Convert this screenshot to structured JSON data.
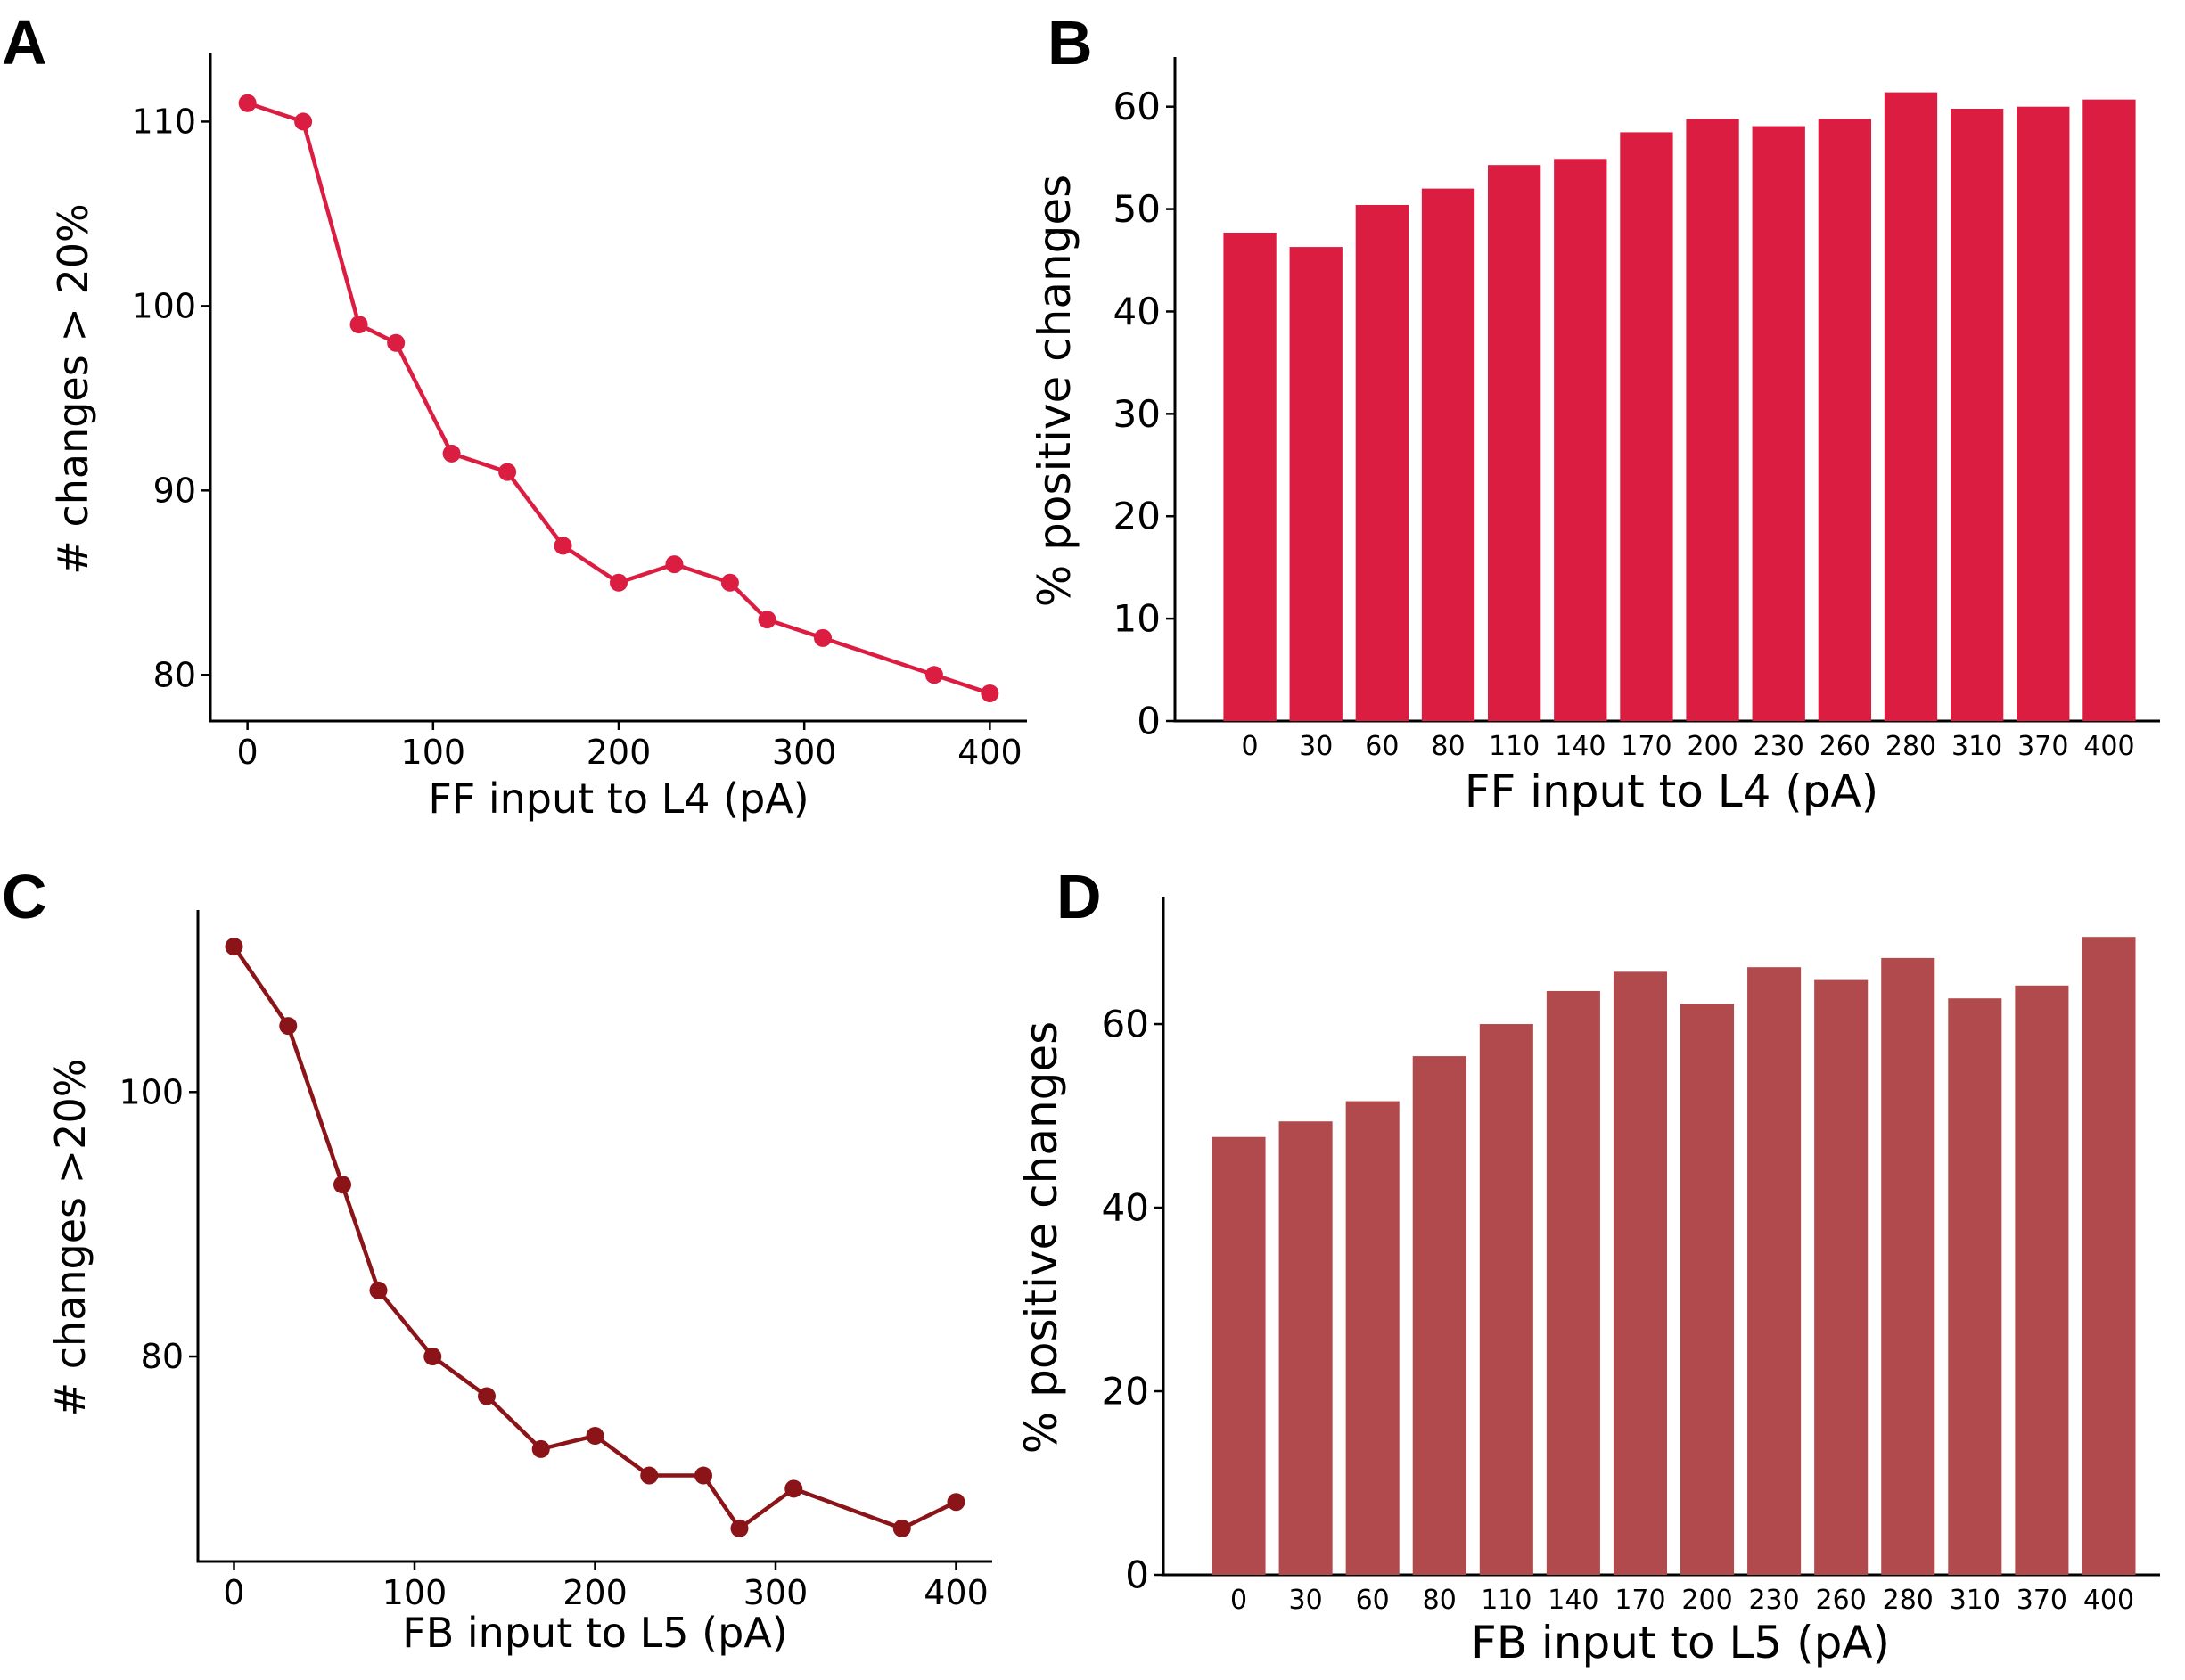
{
  "chart_data": [
    {
      "panel": "A",
      "type": "line",
      "color": "#dc1d42",
      "x": [
        0,
        30,
        60,
        80,
        110,
        140,
        170,
        200,
        230,
        260,
        280,
        310,
        370,
        400
      ],
      "y": [
        111,
        110,
        99,
        98,
        92,
        91,
        87,
        85,
        86,
        85,
        83,
        82,
        80,
        79
      ],
      "xlabel": "FF input to L4 (pA)",
      "ylabel": "# changes > 20%",
      "xticks": [
        0,
        100,
        200,
        300,
        400
      ],
      "yticks": [
        80,
        90,
        100,
        110
      ],
      "xlim": [
        -20,
        420
      ],
      "ylim": [
        77.5,
        113.5
      ],
      "grid": false
    },
    {
      "panel": "B",
      "type": "bar",
      "color": "#dc1d42",
      "categories": [
        "0",
        "30",
        "60",
        "80",
        "110",
        "140",
        "170",
        "200",
        "230",
        "260",
        "280",
        "310",
        "370",
        "400"
      ],
      "values": [
        47.7,
        46.3,
        50.4,
        52,
        54.3,
        54.9,
        57.5,
        58.8,
        58.1,
        58.8,
        61.4,
        59.8,
        60,
        60.7
      ],
      "xlabel": "FF input to L4 (pA)",
      "ylabel": "% positive changes",
      "yticks": [
        0,
        10,
        20,
        30,
        40,
        50,
        60
      ],
      "ylim": [
        0,
        64.5
      ],
      "grid": false
    },
    {
      "panel": "C",
      "type": "line",
      "color": "#8b1418",
      "x": [
        0,
        30,
        60,
        80,
        110,
        140,
        170,
        200,
        230,
        260,
        280,
        310,
        370,
        400
      ],
      "y": [
        111,
        105,
        93,
        85,
        80,
        77,
        73,
        74,
        71,
        71,
        67,
        70,
        67,
        69
      ],
      "xlabel": "FB input to L5 (pA)",
      "ylabel": "# changes >20%",
      "xticks": [
        0,
        100,
        200,
        300,
        400
      ],
      "yticks": [
        80,
        100
      ],
      "xlim": [
        -20,
        420
      ],
      "ylim": [
        64.5,
        113.5
      ],
      "grid": false
    },
    {
      "panel": "D",
      "type": "bar",
      "color": "#b04a4c",
      "categories": [
        "0",
        "30",
        "60",
        "80",
        "110",
        "140",
        "170",
        "200",
        "230",
        "260",
        "280",
        "310",
        "370",
        "400"
      ],
      "values": [
        47.7,
        49.4,
        51.6,
        56.5,
        60,
        63.6,
        65.7,
        62.2,
        66.2,
        64.8,
        67.2,
        62.8,
        64.2,
        69.5
      ],
      "xlabel": "FB input to L5 (pA)",
      "ylabel": "% positive changes",
      "yticks": [
        0,
        20,
        40,
        60
      ],
      "ylim": [
        0,
        73.5
      ],
      "grid": false
    }
  ]
}
